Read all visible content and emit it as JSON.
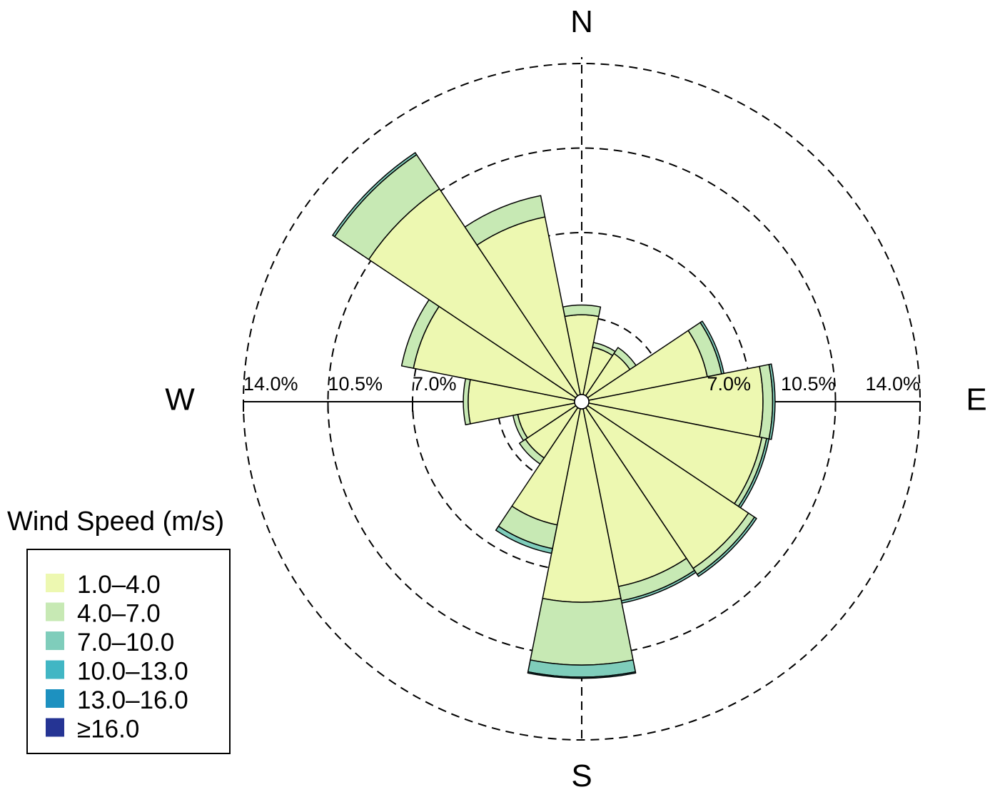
{
  "chart_data": {
    "type": "wind-rose",
    "directions": [
      "N",
      "NNE",
      "NE",
      "ENE",
      "E",
      "ESE",
      "SE",
      "SSE",
      "S",
      "SSW",
      "SW",
      "WSW",
      "W",
      "WNW",
      "NW",
      "NNW"
    ],
    "rings": [
      3.5,
      7.0,
      10.5,
      14.0
    ],
    "ring_labels_east": [
      "",
      "7.0%",
      "10.5%",
      "14.0%"
    ],
    "ring_labels_west": [
      "",
      "7.0%",
      "10.5%",
      "14.0%"
    ],
    "rmax": 14.0,
    "calm_radius_pct": 0.3,
    "compass": {
      "n": "N",
      "e": "E",
      "s": "S",
      "w": "W"
    },
    "legend": {
      "title": "Wind Speed (m/s)",
      "position": "bottom-left",
      "bins": [
        {
          "label": "1.0–4.0",
          "color": "#edf8b1"
        },
        {
          "label": "4.0–7.0",
          "color": "#c7e9b4"
        },
        {
          "label": "7.0–10.0",
          "color": "#7fcdbb"
        },
        {
          "label": "10.0–13.0",
          "color": "#41b6c4"
        },
        {
          "label": "13.0–16.0",
          "color": "#1d91c0"
        },
        {
          "label": "≥16.0",
          "color": "#253494"
        }
      ]
    },
    "series_values": [
      [
        3.3,
        0.4,
        0.0,
        0.0,
        0.0,
        0.0
      ],
      [
        2.0,
        0.2,
        0.0,
        0.0,
        0.0,
        0.0
      ],
      [
        2.1,
        0.3,
        0.0,
        0.0,
        0.0,
        0.0
      ],
      [
        5.0,
        0.6,
        0.1,
        0.0,
        0.0,
        0.0
      ],
      [
        7.2,
        0.4,
        0.1,
        0.0,
        0.0,
        0.0
      ],
      [
        7.3,
        0.2,
        0.1,
        0.0,
        0.0,
        0.0
      ],
      [
        8.0,
        0.3,
        0.1,
        0.0,
        0.0,
        0.0
      ],
      [
        7.5,
        0.6,
        0.1,
        0.0,
        0.0,
        0.0
      ],
      [
        8.0,
        2.6,
        0.5,
        0.05,
        0.0,
        0.0
      ],
      [
        4.9,
        1.0,
        0.2,
        0.0,
        0.0,
        0.0
      ],
      [
        2.5,
        0.3,
        0.0,
        0.0,
        0.0,
        0.0
      ],
      [
        2.4,
        0.2,
        0.0,
        0.0,
        0.0,
        0.0
      ],
      [
        4.4,
        0.2,
        0.0,
        0.0,
        0.0,
        0.0
      ],
      [
        6.8,
        0.5,
        0.0,
        0.0,
        0.0,
        0.0
      ],
      [
        10.3,
        1.7,
        0.1,
        0.0,
        0.0,
        0.0
      ],
      [
        7.5,
        0.9,
        0.0,
        0.0,
        0.0,
        0.0
      ]
    ]
  }
}
